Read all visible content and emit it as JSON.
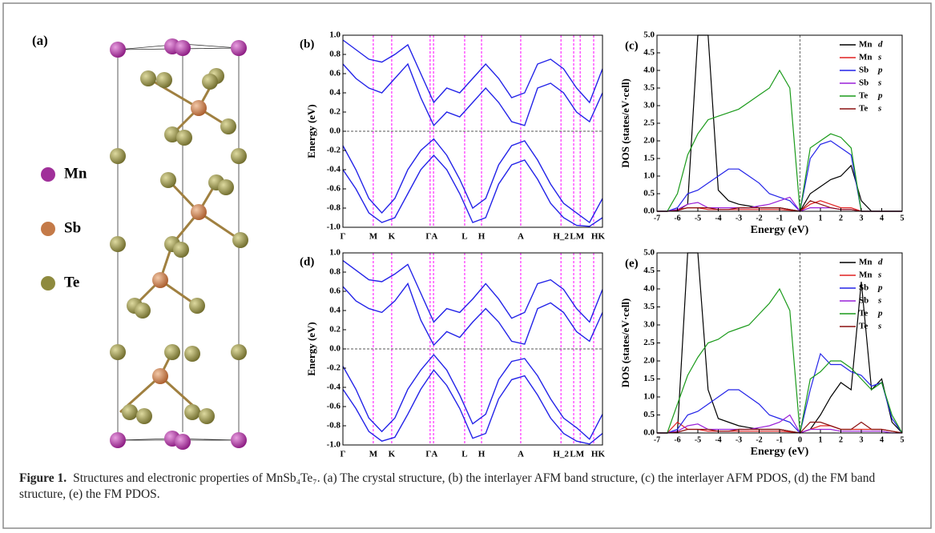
{
  "panels": {
    "a": {
      "label": "(a)",
      "legend": [
        {
          "name": "Mn",
          "color": "#a0309a"
        },
        {
          "name": "Sb",
          "color": "#c47a48"
        },
        {
          "name": "Te",
          "color": "#8e8a3e"
        }
      ]
    },
    "b": {
      "label": "(b)",
      "ylabel": "Energy (eV)",
      "ylim": [
        -1,
        1
      ],
      "yticks": [
        {
          "value": -1,
          "label": "-1.0"
        },
        {
          "value": -0.8,
          "label": "-0.8"
        },
        {
          "value": -0.6,
          "label": "-0.6"
        },
        {
          "value": -0.4,
          "label": "-0.4"
        },
        {
          "value": -0.2,
          "label": "-0.2"
        },
        {
          "value": 0,
          "label": "0.0"
        },
        {
          "value": 0.2,
          "label": "0.2"
        },
        {
          "value": 0.4,
          "label": "0.4"
        },
        {
          "value": 0.6,
          "label": "0.6"
        },
        {
          "value": 0.8,
          "label": "0.8"
        },
        {
          "value": 1,
          "label": "1.0"
        }
      ],
      "kpoints": [
        {
          "label": "Γ",
          "k": 0
        },
        {
          "label": "M",
          "k": 0.117
        },
        {
          "label": "K",
          "k": 0.188
        },
        {
          "label": "ΓA",
          "k": 0.342
        },
        {
          "label": "L",
          "k": 0.469
        },
        {
          "label": "H",
          "k": 0.534
        },
        {
          "label": "A",
          "k": 0.685
        },
        {
          "label": "H_2",
          "k": 0.84
        },
        {
          "label": "LM",
          "k": 0.902
        },
        {
          "label": "HK",
          "k": 0.983
        }
      ],
      "klines": [
        0.117,
        0.188,
        0.336,
        0.349,
        0.469,
        0.534,
        0.685,
        0.84,
        0.889,
        0.914,
        0.966
      ],
      "color": "#2323e8",
      "k": [
        0,
        0.05,
        0.1,
        0.15,
        0.2,
        0.25,
        0.3,
        0.35,
        0.4,
        0.45,
        0.5,
        0.55,
        0.6,
        0.65,
        0.7,
        0.75,
        0.8,
        0.85,
        0.9,
        0.95,
        1
      ],
      "bands": [
        [
          0.7,
          0.55,
          0.45,
          0.4,
          0.55,
          0.7,
          0.35,
          0.06,
          0.2,
          0.15,
          0.3,
          0.45,
          0.3,
          0.1,
          0.06,
          0.45,
          0.5,
          0.4,
          0.2,
          0.1,
          0.4
        ],
        [
          0.95,
          0.85,
          0.75,
          0.72,
          0.8,
          0.9,
          0.6,
          0.3,
          0.45,
          0.4,
          0.55,
          0.7,
          0.55,
          0.35,
          0.4,
          0.7,
          0.75,
          0.65,
          0.45,
          0.3,
          0.65
        ],
        [
          -0.15,
          -0.4,
          -0.7,
          -0.85,
          -0.7,
          -0.4,
          -0.2,
          -0.08,
          -0.25,
          -0.5,
          -0.8,
          -0.7,
          -0.35,
          -0.15,
          -0.1,
          -0.3,
          -0.55,
          -0.75,
          -0.85,
          -0.95,
          -0.7
        ],
        [
          -0.4,
          -0.6,
          -0.85,
          -0.95,
          -0.9,
          -0.65,
          -0.4,
          -0.25,
          -0.4,
          -0.65,
          -0.95,
          -0.9,
          -0.55,
          -0.35,
          -0.3,
          -0.5,
          -0.75,
          -0.9,
          -0.98,
          -0.99,
          -0.9
        ]
      ]
    },
    "c": {
      "label": "(c)",
      "xlabel": "Energy (eV)",
      "ylabel": "DOS (states/eV·cell)",
      "xlim": [
        -7,
        5
      ],
      "xticks": [
        -7,
        -6,
        -5,
        -4,
        -3,
        -2,
        -1,
        0,
        1,
        2,
        3,
        4,
        5
      ],
      "ylim": [
        0,
        5
      ],
      "yticks": [
        {
          "value": 0,
          "label": "0.0"
        },
        {
          "value": 0.5,
          "label": "0.5"
        },
        {
          "value": 1,
          "label": "1.0"
        },
        {
          "value": 1.5,
          "label": "1.5"
        },
        {
          "value": 2,
          "label": "2.0"
        },
        {
          "value": 2.5,
          "label": "2.5"
        },
        {
          "value": 3,
          "label": "3.0"
        },
        {
          "value": 3.5,
          "label": "3.5"
        },
        {
          "value": 4,
          "label": "4.0"
        },
        {
          "value": 4.5,
          "label": "4.5"
        },
        {
          "value": 5,
          "label": "5.0"
        }
      ],
      "x": [
        -7,
        -6.5,
        -6,
        -5.5,
        -5,
        -4.5,
        -4,
        -3.5,
        -3,
        -2.5,
        -2,
        -1.5,
        -1,
        -0.5,
        0,
        0.5,
        1,
        1.5,
        2,
        2.5,
        3,
        3.5,
        4,
        4.5,
        5
      ],
      "series": [
        {
          "element": "Mn",
          "orbital": "d",
          "color": "#000000",
          "values": [
            0,
            0,
            0.02,
            0.2,
            5,
            5,
            0.6,
            0.3,
            0.2,
            0.15,
            0.1,
            0.1,
            0.1,
            0.05,
            0,
            0.5,
            0.7,
            0.9,
            1,
            1.3,
            0.3,
            0,
            0,
            0,
            0
          ]
        },
        {
          "element": "Mn",
          "orbital": "s",
          "color": "#e02020",
          "values": [
            0,
            0,
            0.05,
            0.1,
            0.1,
            0.05,
            0.05,
            0.05,
            0.05,
            0.05,
            0.05,
            0.05,
            0.05,
            0.03,
            0,
            0.2,
            0.3,
            0.2,
            0.1,
            0.1,
            0,
            0,
            0,
            0,
            0
          ]
        },
        {
          "element": "Sb",
          "orbital": "p",
          "color": "#2323e8",
          "values": [
            0,
            0,
            0.1,
            0.5,
            0.6,
            0.8,
            1,
            1.2,
            1.2,
            1,
            0.8,
            0.5,
            0.4,
            0.3,
            0,
            1.5,
            1.9,
            2,
            1.8,
            1.6,
            0,
            0,
            0,
            0,
            0
          ]
        },
        {
          "element": "Sb",
          "orbital": "s",
          "color": "#9a20d8",
          "values": [
            0,
            0,
            0.05,
            0.2,
            0.25,
            0.1,
            0.1,
            0.1,
            0.1,
            0.1,
            0.15,
            0.2,
            0.3,
            0.4,
            0,
            0.1,
            0.1,
            0.1,
            0.05,
            0.05,
            0,
            0,
            0,
            0,
            0
          ]
        },
        {
          "element": "Te",
          "orbital": "p",
          "color": "#1a9a1a",
          "values": [
            0,
            0,
            0.5,
            1.6,
            2.2,
            2.6,
            2.7,
            2.8,
            2.9,
            3.1,
            3.3,
            3.5,
            4,
            3.5,
            0,
            1.8,
            2,
            2.2,
            2.1,
            1.8,
            0,
            0,
            0,
            0,
            0
          ]
        },
        {
          "element": "Te",
          "orbital": "s",
          "color": "#8b1010",
          "values": [
            0,
            0,
            0.02,
            0.1,
            0.1,
            0.1,
            0.05,
            0.05,
            0.1,
            0.1,
            0.1,
            0.1,
            0.1,
            0.05,
            0,
            0.3,
            0.2,
            0.1,
            0.05,
            0.05,
            0,
            0,
            0,
            0,
            0
          ]
        }
      ]
    },
    "d": {
      "label": "(d)",
      "ylabel": "Energy (eV)",
      "ylim": [
        -1,
        1
      ],
      "yticks": [
        {
          "value": -1,
          "label": "-1.0"
        },
        {
          "value": -0.8,
          "label": "-0.8"
        },
        {
          "value": -0.6,
          "label": "-0.6"
        },
        {
          "value": -0.4,
          "label": "-0.4"
        },
        {
          "value": -0.2,
          "label": "-0.2"
        },
        {
          "value": 0,
          "label": "0.0"
        },
        {
          "value": 0.2,
          "label": "0.2"
        },
        {
          "value": 0.4,
          "label": "0.4"
        },
        {
          "value": 0.6,
          "label": "0.6"
        },
        {
          "value": 0.8,
          "label": "0.8"
        },
        {
          "value": 1,
          "label": "1.0"
        }
      ],
      "kpoints": [
        {
          "label": "Γ",
          "k": 0
        },
        {
          "label": "M",
          "k": 0.117
        },
        {
          "label": "K",
          "k": 0.188
        },
        {
          "label": "ΓA",
          "k": 0.342
        },
        {
          "label": "L",
          "k": 0.469
        },
        {
          "label": "H",
          "k": 0.534
        },
        {
          "label": "A",
          "k": 0.685
        },
        {
          "label": "H_2",
          "k": 0.84
        },
        {
          "label": "LM",
          "k": 0.902
        },
        {
          "label": "HK",
          "k": 0.983
        }
      ],
      "klines": [
        0.117,
        0.188,
        0.336,
        0.349,
        0.469,
        0.534,
        0.685,
        0.84,
        0.889,
        0.914,
        0.966
      ],
      "color": "#2323e8",
      "k": [
        0,
        0.05,
        0.1,
        0.15,
        0.2,
        0.25,
        0.3,
        0.35,
        0.4,
        0.45,
        0.5,
        0.55,
        0.6,
        0.65,
        0.7,
        0.75,
        0.8,
        0.85,
        0.9,
        0.95,
        1
      ],
      "bands": [
        [
          0.65,
          0.5,
          0.42,
          0.38,
          0.5,
          0.68,
          0.3,
          0.04,
          0.18,
          0.12,
          0.28,
          0.42,
          0.28,
          0.08,
          0.05,
          0.42,
          0.48,
          0.38,
          0.18,
          0.08,
          0.38
        ],
        [
          0.92,
          0.82,
          0.72,
          0.7,
          0.78,
          0.88,
          0.58,
          0.28,
          0.42,
          0.38,
          0.52,
          0.68,
          0.52,
          0.32,
          0.38,
          0.68,
          0.72,
          0.62,
          0.42,
          0.28,
          0.62
        ],
        [
          -0.18,
          -0.42,
          -0.72,
          -0.86,
          -0.72,
          -0.42,
          -0.22,
          -0.06,
          -0.22,
          -0.48,
          -0.78,
          -0.68,
          -0.32,
          -0.13,
          -0.1,
          -0.28,
          -0.52,
          -0.72,
          -0.82,
          -0.94,
          -0.68
        ],
        [
          -0.42,
          -0.62,
          -0.86,
          -0.96,
          -0.92,
          -0.68,
          -0.42,
          -0.22,
          -0.38,
          -0.62,
          -0.93,
          -0.88,
          -0.52,
          -0.32,
          -0.28,
          -0.48,
          -0.72,
          -0.88,
          -0.96,
          -0.99,
          -0.88
        ]
      ]
    },
    "e": {
      "label": "(e)",
      "xlabel": "Energy (eV)",
      "ylabel": "DOS (states/eV·cell)",
      "xlim": [
        -7,
        5
      ],
      "xticks": [
        -7,
        -6,
        -5,
        -4,
        -3,
        -2,
        -1,
        0,
        1,
        2,
        3,
        4,
        5
      ],
      "ylim": [
        0,
        5
      ],
      "yticks": [
        {
          "value": 0,
          "label": "0.0"
        },
        {
          "value": 0.5,
          "label": "0.5"
        },
        {
          "value": 1,
          "label": "1.0"
        },
        {
          "value": 1.5,
          "label": "1.5"
        },
        {
          "value": 2,
          "label": "2.0"
        },
        {
          "value": 2.5,
          "label": "2.5"
        },
        {
          "value": 3,
          "label": "3.0"
        },
        {
          "value": 3.5,
          "label": "3.5"
        },
        {
          "value": 4,
          "label": "4.0"
        },
        {
          "value": 4.5,
          "label": "4.5"
        },
        {
          "value": 5,
          "label": "5.0"
        }
      ],
      "x": [
        -7,
        -6.5,
        -6,
        -5.5,
        -5,
        -4.5,
        -4,
        -3.5,
        -3,
        -2.5,
        -2,
        -1.5,
        -1,
        -0.5,
        0,
        0.5,
        1,
        1.5,
        2,
        2.5,
        3,
        3.5,
        4,
        4.5,
        5
      ],
      "series": [
        {
          "element": "Mn",
          "orbital": "d",
          "color": "#000000",
          "values": [
            0,
            0,
            0.02,
            5,
            5,
            1.2,
            0.4,
            0.3,
            0.2,
            0.15,
            0.1,
            0.1,
            0.1,
            0.05,
            0,
            0.1,
            0.5,
            1,
            1.4,
            1.2,
            4.2,
            1.2,
            1.5,
            0.3,
            0
          ]
        },
        {
          "element": "Mn",
          "orbital": "s",
          "color": "#e02020",
          "values": [
            0,
            0,
            0.3,
            0.1,
            0.1,
            0.05,
            0.05,
            0.05,
            0.05,
            0.05,
            0.05,
            0.05,
            0.05,
            0.03,
            0,
            0.1,
            0.2,
            0.2,
            0.1,
            0.1,
            0.1,
            0.1,
            0.1,
            0.05,
            0
          ]
        },
        {
          "element": "Sb",
          "orbital": "p",
          "color": "#2323e8",
          "values": [
            0,
            0,
            0.1,
            0.5,
            0.6,
            0.8,
            1,
            1.2,
            1.2,
            1,
            0.8,
            0.5,
            0.4,
            0.3,
            0,
            1.2,
            2.2,
            1.9,
            1.9,
            1.7,
            1.6,
            1.3,
            1.4,
            0.4,
            0
          ]
        },
        {
          "element": "Sb",
          "orbital": "s",
          "color": "#9a20d8",
          "values": [
            0,
            0,
            0.05,
            0.2,
            0.25,
            0.1,
            0.1,
            0.1,
            0.1,
            0.1,
            0.15,
            0.2,
            0.3,
            0.5,
            0,
            0.1,
            0.1,
            0.1,
            0.05,
            0.05,
            0.05,
            0.05,
            0.05,
            0,
            0
          ]
        },
        {
          "element": "Te",
          "orbital": "p",
          "color": "#1a9a1a",
          "values": [
            0,
            0,
            0.8,
            1.6,
            2.1,
            2.5,
            2.6,
            2.8,
            2.9,
            3,
            3.3,
            3.6,
            4,
            3.4,
            0,
            1.5,
            1.7,
            2,
            2,
            1.8,
            1.5,
            1.2,
            1.4,
            0.5,
            0
          ]
        },
        {
          "element": "Te",
          "orbital": "s",
          "color": "#8b1010",
          "values": [
            0,
            0,
            0.02,
            0.1,
            0.1,
            0.1,
            0.05,
            0.05,
            0.1,
            0.1,
            0.1,
            0.1,
            0.1,
            0.05,
            0,
            0.3,
            0.3,
            0.2,
            0.1,
            0.1,
            0.3,
            0.1,
            0.1,
            0.05,
            0
          ]
        }
      ]
    }
  },
  "caption": {
    "label": "Figure 1.",
    "text": "Structures and electronic properties of MnSb₄Te₇. (a) The crystal structure, (b) the interlayer AFM band structure, (c) the interlayer AFM PDOS, (d) the FM band structure, (e) the FM PDOS."
  }
}
